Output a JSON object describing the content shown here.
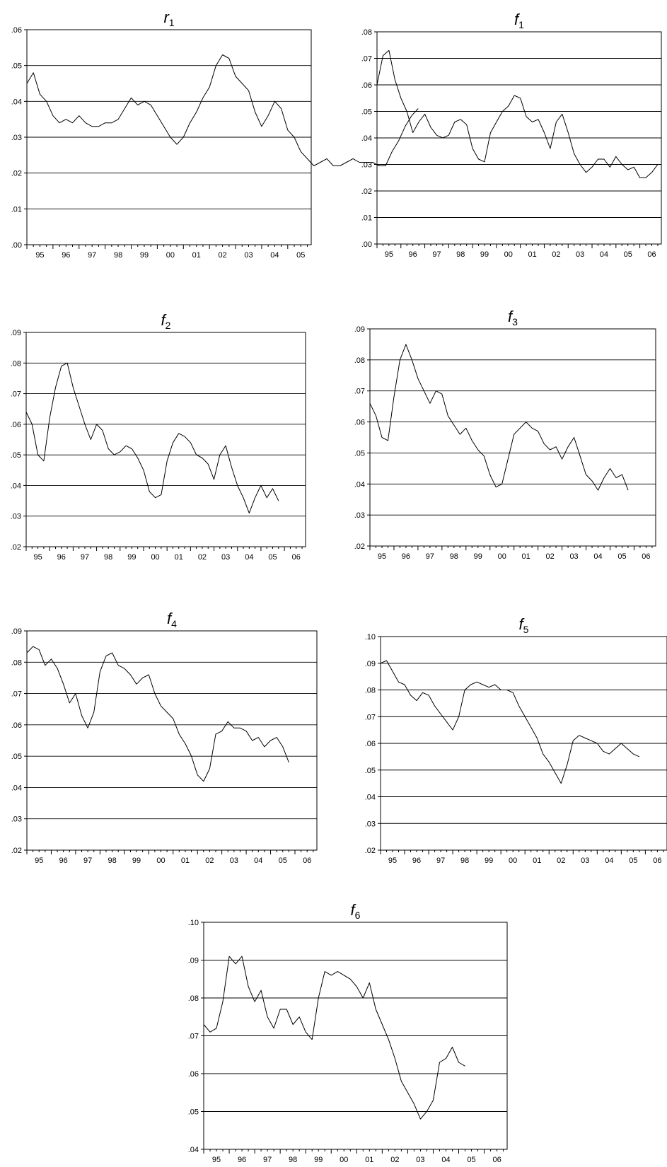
{
  "chart_data": [
    {
      "type": "line",
      "title": "r",
      "title_sub": "1",
      "ylim": [
        0,
        0.06
      ],
      "yticks": [
        0,
        0.01,
        0.02,
        0.03,
        0.04,
        0.05,
        0.06
      ],
      "ytick_labels": [
        ".00",
        ".01",
        ".02",
        ".03",
        ".04",
        ".05",
        ".06"
      ],
      "grid": true,
      "xlim": [
        1995.0,
        2005.9
      ],
      "xtick_labels": [
        "95",
        "96",
        "97",
        "98",
        "99",
        "00",
        "01",
        "02",
        "03",
        "04",
        "05"
      ],
      "x_start": 1995.0,
      "x_step": 0.25,
      "values": [
        0.045,
        0.048,
        0.042,
        0.04,
        0.036,
        0.034,
        0.035,
        0.034,
        0.036,
        0.034,
        0.033,
        0.033,
        0.034,
        0.034,
        0.035,
        0.038,
        0.041,
        0.039,
        0.04,
        0.039,
        0.036,
        0.033,
        0.03,
        0.028,
        0.03,
        0.034,
        0.037,
        0.041,
        0.044,
        0.05,
        0.053,
        0.052,
        0.047,
        0.045,
        0.043,
        0.037,
        0.033,
        0.036,
        0.04,
        0.038,
        0.032,
        0.03,
        0.026,
        0.024,
        0.022,
        0.023,
        0.024,
        0.022,
        0.022,
        0.023,
        0.024,
        0.023,
        0.023,
        0.023,
        0.022,
        0.022,
        0.026,
        0.029,
        0.033,
        0.036,
        0.038
      ]
    },
    {
      "type": "line",
      "title": "f",
      "title_sub": "1",
      "ylim": [
        0,
        0.08
      ],
      "yticks": [
        0,
        0.01,
        0.02,
        0.03,
        0.04,
        0.05,
        0.06,
        0.07,
        0.08
      ],
      "ytick_labels": [
        ".00",
        ".01",
        ".02",
        ".03",
        ".04",
        ".05",
        ".06",
        ".07",
        ".08"
      ],
      "grid": true,
      "xlim": [
        1995.0,
        2006.9
      ],
      "xtick_labels": [
        "95",
        "96",
        "97",
        "98",
        "99",
        "00",
        "01",
        "02",
        "03",
        "04",
        "05",
        "06"
      ],
      "x_start": 1995.0,
      "x_step": 0.25,
      "values": [
        0.06,
        0.071,
        0.073,
        0.062,
        0.055,
        0.05,
        0.042,
        0.046,
        0.049,
        0.044,
        0.041,
        0.04,
        0.041,
        0.046,
        0.047,
        0.045,
        0.036,
        0.032,
        0.031,
        0.042,
        0.046,
        0.05,
        0.052,
        0.056,
        0.055,
        0.048,
        0.046,
        0.047,
        0.042,
        0.036,
        0.046,
        0.049,
        0.042,
        0.034,
        0.03,
        0.027,
        0.029,
        0.032,
        0.032,
        0.029,
        0.033,
        0.03,
        0.028,
        0.029,
        0.025,
        0.025,
        0.027,
        0.03
      ]
    },
    {
      "type": "line",
      "title": "f",
      "title_sub": "2",
      "ylim": [
        0.02,
        0.09
      ],
      "yticks": [
        0.02,
        0.03,
        0.04,
        0.05,
        0.06,
        0.07,
        0.08,
        0.09
      ],
      "ytick_labels": [
        ".02",
        ".03",
        ".04",
        ".05",
        ".06",
        ".07",
        ".08",
        ".09"
      ],
      "grid": true,
      "xlim": [
        1995.0,
        2006.9
      ],
      "xtick_labels": [
        "95",
        "96",
        "97",
        "98",
        "99",
        "00",
        "01",
        "02",
        "03",
        "04",
        "05",
        "06"
      ],
      "x_start": 1995.0,
      "x_step": 0.25,
      "values": [
        0.064,
        0.06,
        0.05,
        0.048,
        0.062,
        0.072,
        0.079,
        0.08,
        0.072,
        0.066,
        0.06,
        0.055,
        0.06,
        0.058,
        0.052,
        0.05,
        0.051,
        0.053,
        0.052,
        0.049,
        0.045,
        0.038,
        0.036,
        0.037,
        0.048,
        0.054,
        0.057,
        0.056,
        0.054,
        0.05,
        0.049,
        0.047,
        0.042,
        0.05,
        0.053,
        0.046,
        0.04,
        0.036,
        0.031,
        0.036,
        0.04,
        0.036,
        0.039,
        0.035
      ]
    },
    {
      "type": "line",
      "title": "f",
      "title_sub": "3",
      "ylim": [
        0.02,
        0.09
      ],
      "yticks": [
        0.02,
        0.03,
        0.04,
        0.05,
        0.06,
        0.07,
        0.08,
        0.09
      ],
      "ytick_labels": [
        ".02",
        ".03",
        ".04",
        ".05",
        ".06",
        ".07",
        ".08",
        ".09"
      ],
      "grid": true,
      "xlim": [
        1995.0,
        2006.9
      ],
      "xtick_labels": [
        "95",
        "96",
        "97",
        "98",
        "99",
        "00",
        "01",
        "02",
        "03",
        "04",
        "05",
        "06"
      ],
      "x_start": 1995.0,
      "x_step": 0.25,
      "values": [
        0.066,
        0.062,
        0.055,
        0.054,
        0.068,
        0.08,
        0.085,
        0.08,
        0.074,
        0.07,
        0.066,
        0.07,
        0.069,
        0.062,
        0.059,
        0.056,
        0.058,
        0.054,
        0.051,
        0.049,
        0.043,
        0.039,
        0.04,
        0.048,
        0.056,
        0.058,
        0.06,
        0.058,
        0.057,
        0.053,
        0.051,
        0.052,
        0.048,
        0.052,
        0.055,
        0.049,
        0.043,
        0.041,
        0.038,
        0.042,
        0.045,
        0.042,
        0.043,
        0.038
      ]
    },
    {
      "type": "line",
      "title": "f",
      "title_sub": "4",
      "ylim": [
        0.02,
        0.09
      ],
      "yticks": [
        0.02,
        0.03,
        0.04,
        0.05,
        0.06,
        0.07,
        0.08,
        0.09
      ],
      "ytick_labels": [
        ".02",
        ".03",
        ".04",
        ".05",
        ".06",
        ".07",
        ".08",
        ".09"
      ],
      "grid": true,
      "xlim": [
        1995.0,
        2006.9
      ],
      "xtick_labels": [
        "95",
        "96",
        "97",
        "98",
        "99",
        "00",
        "01",
        "02",
        "03",
        "04",
        "05",
        "06"
      ],
      "x_start": 1995.0,
      "x_step": 0.25,
      "values": [
        0.083,
        0.085,
        0.084,
        0.079,
        0.081,
        0.078,
        0.073,
        0.067,
        0.07,
        0.063,
        0.059,
        0.064,
        0.077,
        0.082,
        0.083,
        0.079,
        0.078,
        0.076,
        0.073,
        0.075,
        0.076,
        0.07,
        0.066,
        0.064,
        0.062,
        0.057,
        0.054,
        0.05,
        0.044,
        0.042,
        0.046,
        0.057,
        0.058,
        0.061,
        0.059,
        0.059,
        0.058,
        0.055,
        0.056,
        0.053,
        0.055,
        0.056,
        0.053,
        0.048
      ]
    },
    {
      "type": "line",
      "title": "f",
      "title_sub": "5",
      "ylim": [
        0.02,
        0.1
      ],
      "yticks": [
        0.02,
        0.03,
        0.04,
        0.05,
        0.06,
        0.07,
        0.08,
        0.09,
        0.1
      ],
      "ytick_labels": [
        ".02",
        ".03",
        ".04",
        ".05",
        ".06",
        ".07",
        ".08",
        ".09",
        ".10"
      ],
      "grid": true,
      "xlim": [
        1995.0,
        2006.9
      ],
      "xtick_labels": [
        "95",
        "96",
        "97",
        "98",
        "99",
        "00",
        "01",
        "02",
        "03",
        "04",
        "05",
        "06"
      ],
      "x_start": 1995.0,
      "x_step": 0.25,
      "values": [
        0.09,
        0.091,
        0.087,
        0.083,
        0.082,
        0.078,
        0.076,
        0.079,
        0.078,
        0.074,
        0.071,
        0.068,
        0.065,
        0.07,
        0.08,
        0.082,
        0.083,
        0.082,
        0.081,
        0.082,
        0.08,
        0.08,
        0.079,
        0.074,
        0.07,
        0.066,
        0.062,
        0.056,
        0.053,
        0.049,
        0.045,
        0.052,
        0.061,
        0.063,
        0.062,
        0.061,
        0.06,
        0.057,
        0.056,
        0.058,
        0.06,
        0.058,
        0.056,
        0.055
      ]
    },
    {
      "type": "line",
      "title": "f",
      "title_sub": "6",
      "ylim": [
        0.04,
        0.1
      ],
      "yticks": [
        0.04,
        0.05,
        0.06,
        0.07,
        0.08,
        0.09,
        0.1
      ],
      "ytick_labels": [
        ".04",
        ".05",
        ".06",
        ".07",
        ".08",
        ".09",
        ".10"
      ],
      "grid": true,
      "xlim": [
        1995.0,
        2006.9
      ],
      "xtick_labels": [
        "95",
        "96",
        "97",
        "98",
        "99",
        "00",
        "01",
        "02",
        "03",
        "04",
        "05",
        "06"
      ],
      "x_start": 1995.0,
      "x_step": 0.25,
      "values": [
        0.073,
        0.071,
        0.072,
        0.079,
        0.091,
        0.089,
        0.091,
        0.083,
        0.079,
        0.082,
        0.075,
        0.072,
        0.077,
        0.077,
        0.073,
        0.075,
        0.071,
        0.069,
        0.08,
        0.087,
        0.086,
        0.087,
        0.086,
        0.085,
        0.083,
        0.08,
        0.084,
        0.077,
        0.073,
        0.069,
        0.064,
        0.058,
        0.055,
        0.052,
        0.048,
        0.05,
        0.053,
        0.063,
        0.064,
        0.067,
        0.063,
        0.062
      ]
    }
  ]
}
